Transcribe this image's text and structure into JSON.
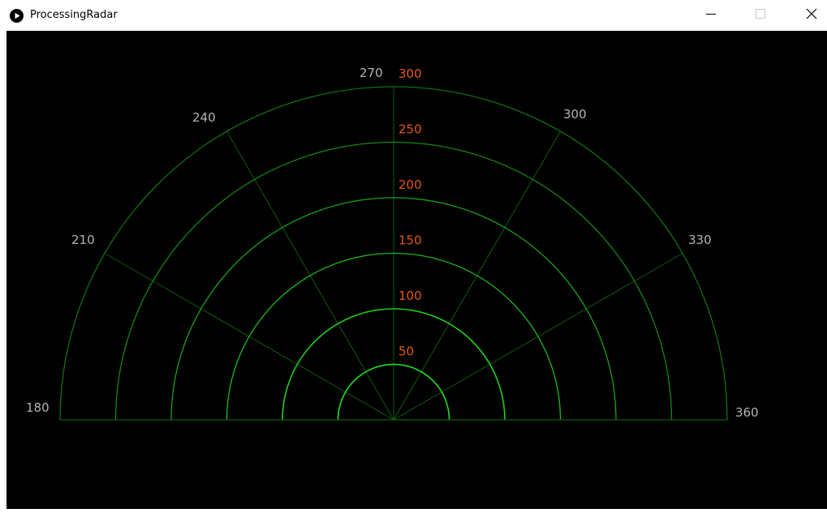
{
  "window": {
    "title": "ProcessingRadar",
    "icons": {
      "app": "play-circle-icon",
      "minimize": "minimize-icon",
      "maximize": "maximize-icon",
      "close": "close-icon"
    }
  },
  "radar": {
    "angle_labels": [
      "180",
      "210",
      "240",
      "270",
      "300",
      "330",
      "360"
    ],
    "angles_deg": [
      180,
      210,
      240,
      270,
      300,
      330,
      360
    ],
    "distance_labels": [
      "50",
      "100",
      "150",
      "200",
      "250",
      "300"
    ],
    "distances": [
      50,
      100,
      150,
      200,
      250,
      300
    ],
    "colors": {
      "background": "#000000",
      "rings": [
        "#22dd22",
        "#1fcc1f",
        "#1cb81c",
        "#18a018",
        "#138813",
        "#0f700f"
      ],
      "spokes": "#0f5a0f",
      "baseline": "#0f700f",
      "angle_label": "#b4b4b4",
      "distance_label": "#e05a10"
    }
  }
}
